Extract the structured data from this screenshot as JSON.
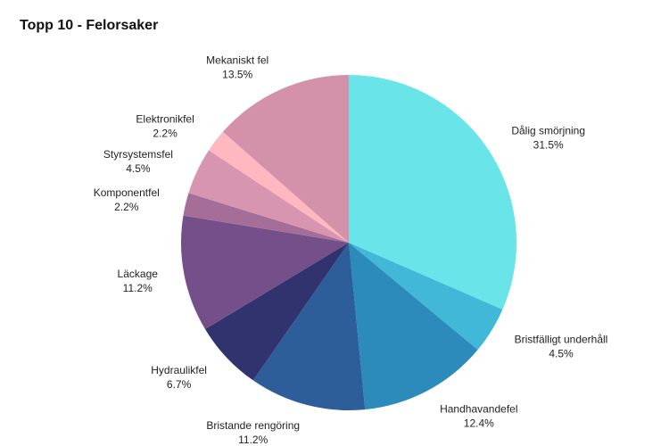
{
  "chart_data": {
    "type": "pie",
    "title": "Topp 10 - Felorsaker",
    "start_angle_deg": 0,
    "direction": "clockwise",
    "slices": [
      {
        "label": "Dålig smörjning",
        "value": 31.5,
        "value_label": "31.5%",
        "color": "#69E4E8"
      },
      {
        "label": "Bristfälligt underhåll",
        "value": 4.5,
        "value_label": "4.5%",
        "color": "#42B8D8"
      },
      {
        "label": "Handhavandefel",
        "value": 12.4,
        "value_label": "12.4%",
        "color": "#2C8BBB"
      },
      {
        "label": "Bristande rengöring",
        "value": 11.2,
        "value_label": "11.2%",
        "color": "#2D5E9A"
      },
      {
        "label": "Hydraulikfel",
        "value": 6.7,
        "value_label": "6.7%",
        "color": "#30336E"
      },
      {
        "label": "Läckage",
        "value": 11.2,
        "value_label": "11.2%",
        "color": "#744F89"
      },
      {
        "label": "Komponentfel",
        "value": 2.2,
        "value_label": "2.2%",
        "color": "#A46E99"
      },
      {
        "label": "Styrsystemsfel",
        "value": 4.5,
        "value_label": "4.5%",
        "color": "#D795B0"
      },
      {
        "label": "Elektronikfel",
        "value": 2.2,
        "value_label": "2.2%",
        "color": "#FFB8C0"
      },
      {
        "label": "Mekaniskt fel",
        "value": 13.5,
        "value_label": "13.5%",
        "color": "#D492AA"
      }
    ]
  }
}
